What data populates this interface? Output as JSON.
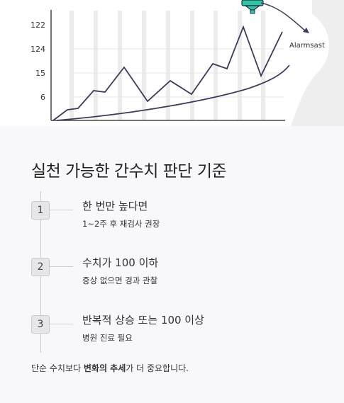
{
  "illustration": {
    "axis_labels": [
      "122",
      "124",
      "15",
      "6"
    ],
    "annotation": "Alarmsast"
  },
  "title": "실천 가능한 간수치 판단 기준",
  "steps": [
    {
      "number": "1",
      "title": "한 번만 높다면",
      "detail": "1~2주 후 재검사 권장"
    },
    {
      "number": "2",
      "title": "수치가 100 이하",
      "detail": "증상 없으면 경과 관찰"
    },
    {
      "number": "3",
      "title": "반복적 상승 또는 100 이상",
      "detail": "병원 진료 필요"
    }
  ],
  "footer": {
    "before": "단순 수치보다 ",
    "strong": "변화의 추세",
    "after": "가 더 중요합니다."
  }
}
